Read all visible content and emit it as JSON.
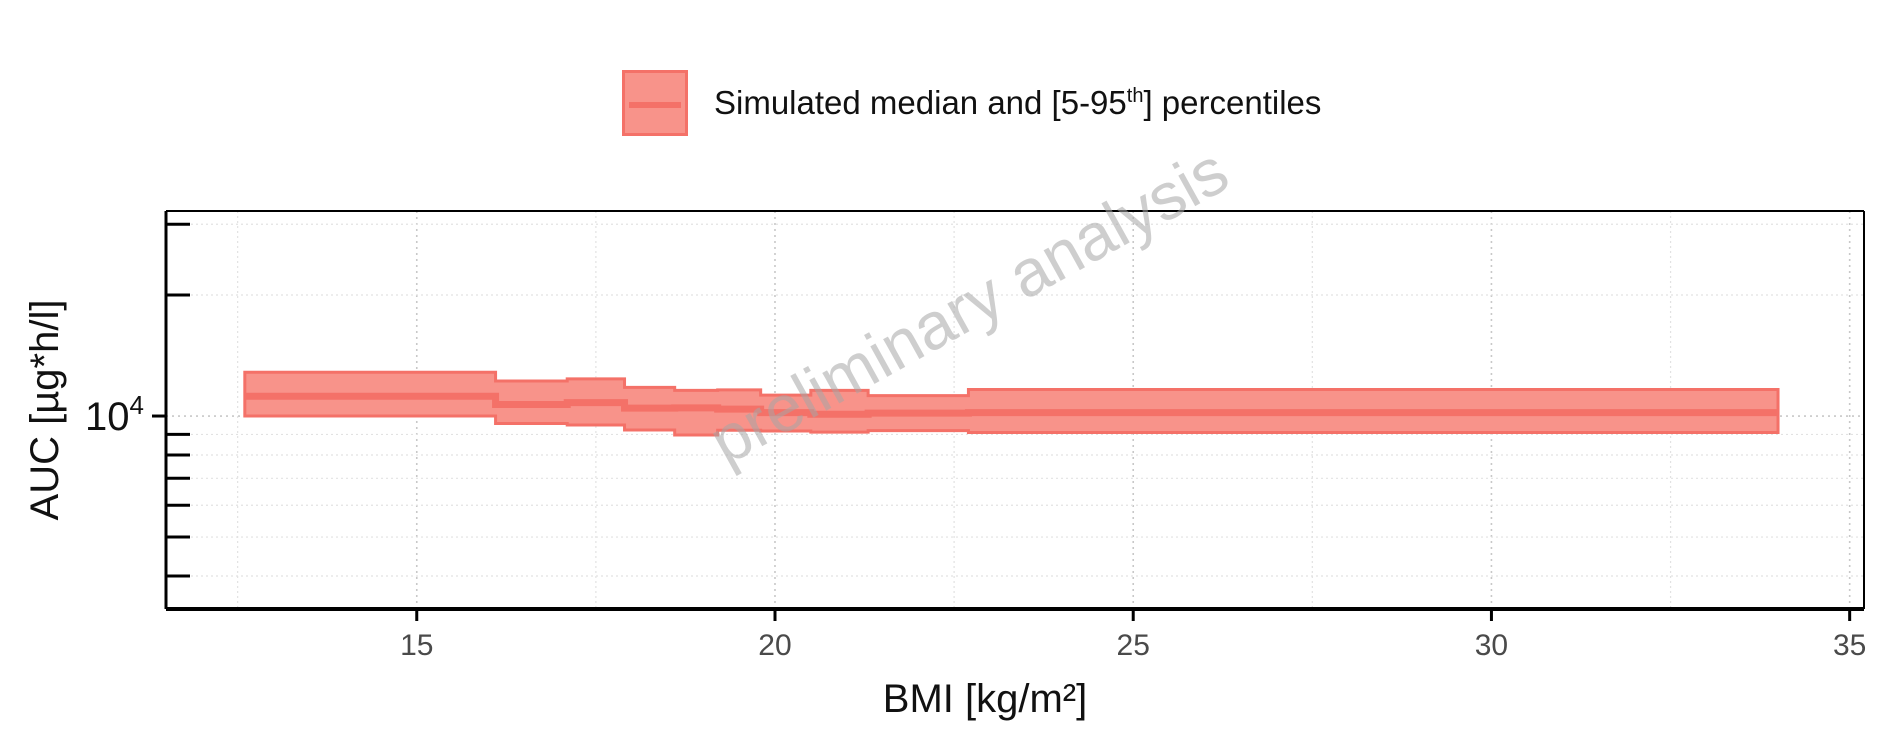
{
  "legend": {
    "label_main": "Simulated median and [5-95",
    "label_sup": "th",
    "label_end": "] percentiles"
  },
  "watermark": "preliminary analysis",
  "colors": {
    "band_fill": "#f8938a",
    "band_stroke": "#f47168",
    "median": "#f47168"
  },
  "chart_data": {
    "type": "area",
    "xlabel": "BMI [kg/m²]",
    "ylabel": "AUC [µg*h/l]",
    "xlim": [
      11.5,
      35.2
    ],
    "ylim_log10": [
      3.52,
      4.51
    ],
    "yscale": "log",
    "xticks": [
      15,
      20,
      25,
      30,
      35
    ],
    "ytick_label": {
      "base": "10",
      "exp": "4",
      "value": 10000
    },
    "grid": true,
    "legend_position": "top",
    "series": [
      {
        "name": "Simulated median and [5-95th] percentiles",
        "bins": [
          {
            "x0": 12.6,
            "x1": 16.1,
            "median": 11200,
            "p5": 10000,
            "p95": 12850
          },
          {
            "x0": 16.1,
            "x1": 17.1,
            "median": 10680,
            "p5": 9580,
            "p95": 12220
          },
          {
            "x0": 17.1,
            "x1": 17.9,
            "median": 10800,
            "p5": 9500,
            "p95": 12370
          },
          {
            "x0": 17.9,
            "x1": 18.6,
            "median": 10460,
            "p5": 9230,
            "p95": 11780
          },
          {
            "x0": 18.6,
            "x1": 19.2,
            "median": 10480,
            "p5": 8970,
            "p95": 11580
          },
          {
            "x0": 19.2,
            "x1": 19.8,
            "median": 10400,
            "p5": 9220,
            "p95": 11620
          },
          {
            "x0": 19.8,
            "x1": 20.5,
            "median": 10200,
            "p5": 9180,
            "p95": 11270
          },
          {
            "x0": 20.5,
            "x1": 21.3,
            "median": 10100,
            "p5": 9120,
            "p95": 11580
          },
          {
            "x0": 21.3,
            "x1": 22.7,
            "median": 10170,
            "p5": 9200,
            "p95": 11240
          },
          {
            "x0": 22.7,
            "x1": 34.0,
            "median": 10200,
            "p5": 9100,
            "p95": 11640
          }
        ]
      }
    ]
  }
}
